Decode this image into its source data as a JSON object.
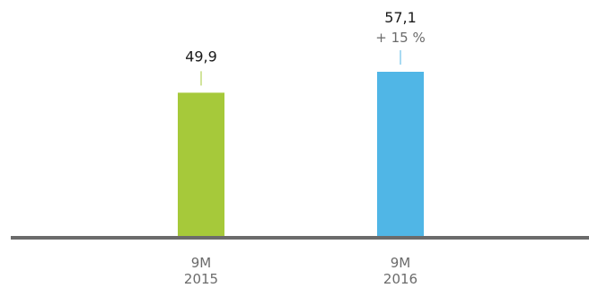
{
  "chart_data": {
    "type": "bar",
    "categories": [
      "9M 2015",
      "9M 2016"
    ],
    "category_lines": [
      [
        "9M",
        "2015"
      ],
      [
        "9M",
        "2016"
      ]
    ],
    "values": [
      49.9,
      57.1
    ],
    "value_labels": [
      "49,9",
      "57,1"
    ],
    "change_labels": [
      "",
      "+ 15 %"
    ],
    "bar_colors": [
      "#a6c93a",
      "#50b6e6"
    ],
    "axis_color": "#6b6b6b",
    "label_color": "#1a1a1a",
    "change_color": "#6b6b6b",
    "category_color": "#6b6b6b",
    "ylim": [
      0,
      60
    ],
    "grid": false,
    "title": "",
    "xlabel": "",
    "ylabel": ""
  }
}
